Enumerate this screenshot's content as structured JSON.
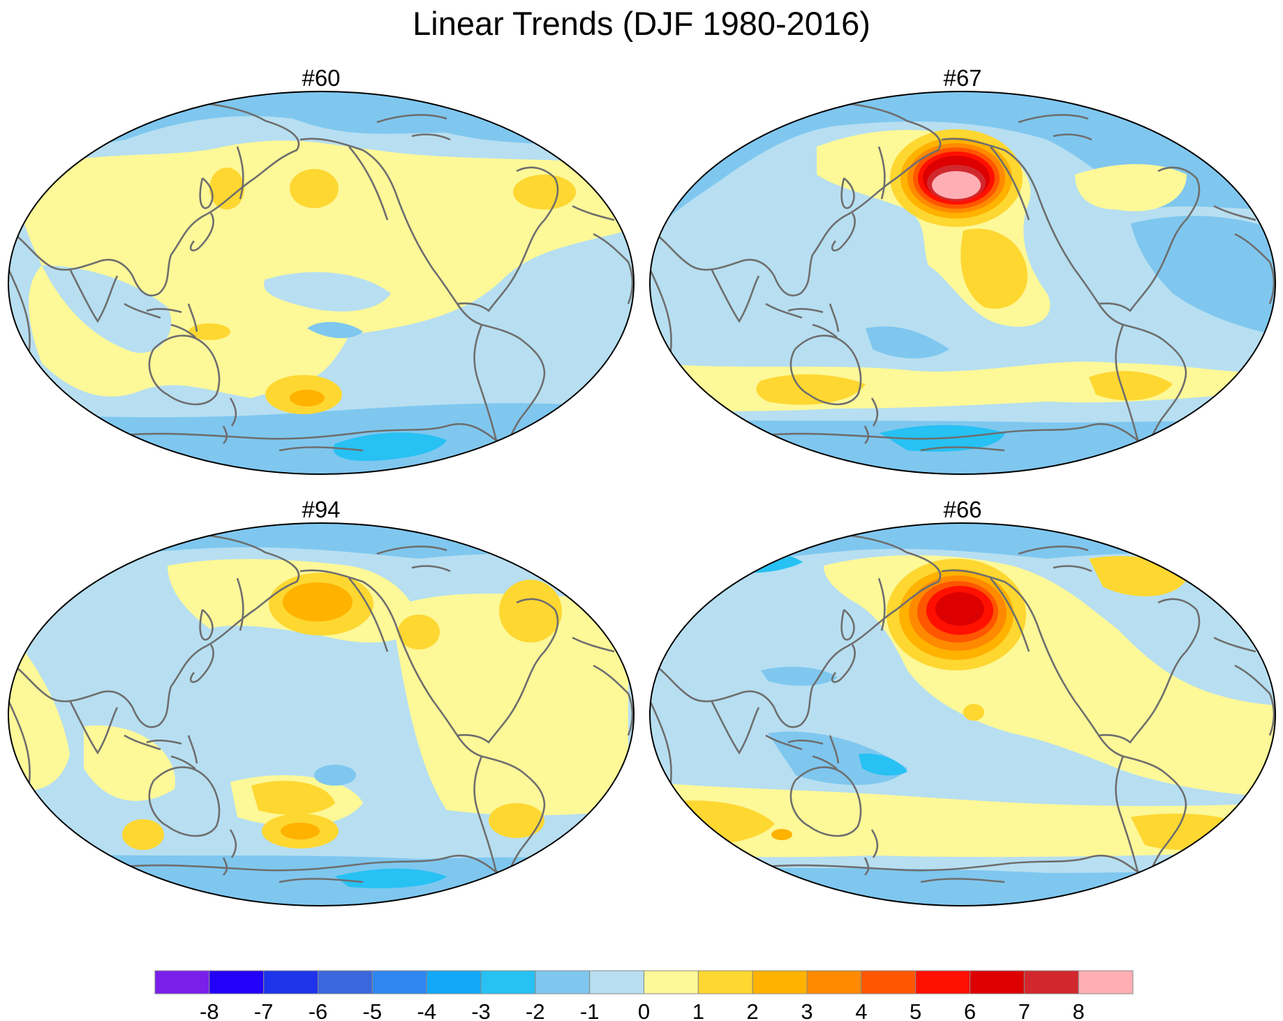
{
  "title": "Linear Trends (DJF 1980-2016)",
  "panels": [
    {
      "id": "#60",
      "label": "#60"
    },
    {
      "id": "#67",
      "label": "#67"
    },
    {
      "id": "#94",
      "label": "#94"
    },
    {
      "id": "#66",
      "label": "#66"
    }
  ],
  "projection": "Robinson (Pacific-centered, 180°)",
  "colorbar": {
    "labels": [
      "-8",
      "-7",
      "-6",
      "-5",
      "-4",
      "-3",
      "-2",
      "-1",
      "0",
      "1",
      "2",
      "3",
      "4",
      "5",
      "6",
      "7",
      "8"
    ],
    "colors": [
      "#7a1fea",
      "#2300f8",
      "#1e34ea",
      "#3a68dd",
      "#2f86f0",
      "#13a8f7",
      "#27c1f3",
      "#7fc7ef",
      "#b7dff1",
      "#fdf898",
      "#fed731",
      "#ffb200",
      "#ff8a00",
      "#ff5600",
      "#ff1000",
      "#dd0000",
      "#d2282d",
      "#ffafb4"
    ]
  },
  "colors": {
    "ocean_background": "#b7dff1",
    "coastline": "#6e6e6e",
    "map_border": "#000000"
  }
}
